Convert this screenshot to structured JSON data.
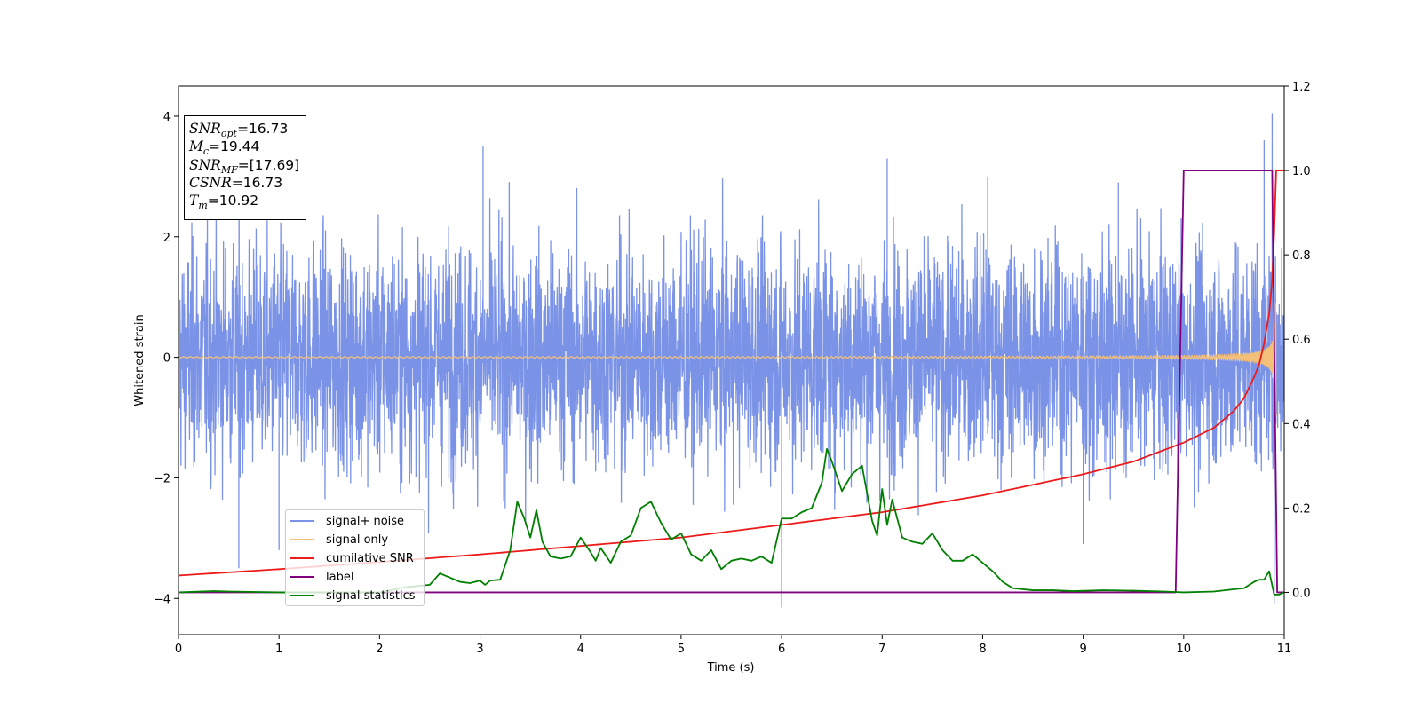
{
  "chart_data": {
    "type": "line",
    "xlabel": "Time (s)",
    "ylabel": "Whitened strain",
    "xlim": [
      0,
      11
    ],
    "ylim": [
      -4.6,
      4.5
    ],
    "y2lim": [
      -0.1,
      1.2
    ],
    "x_ticks": [
      "0",
      "1",
      "2",
      "3",
      "4",
      "5",
      "6",
      "7",
      "8",
      "9",
      "10",
      "11"
    ],
    "y_ticks": [
      "4",
      "2",
      "0",
      "−2",
      "−4"
    ],
    "y2_ticks": [
      "1.2",
      "1.0",
      "0.8",
      "0.6",
      "0.4",
      "0.2",
      "0.0"
    ],
    "legend_position": "lower-left",
    "annotation": [
      {
        "var": "SNR",
        "sub": "opt",
        "text": "=16.73"
      },
      {
        "var": "M",
        "sub": "c",
        "text": "=19.44"
      },
      {
        "var": "SNR",
        "sub": "MF",
        "text": "=[17.69]"
      },
      {
        "var": "CSNR",
        "sub": "",
        "text": "=16.73"
      },
      {
        "var": "T",
        "sub": "m",
        "text": "=10.92"
      }
    ],
    "series": [
      {
        "name": "signal+ noise",
        "color": "#7b93e6",
        "axis": "left",
        "style": "dense noise, amplitude roughly ±2.3, occasional spikes to ±3.5, peaks near t=10.9 up to 4.05",
        "highlight_points": [
          [
            0.6,
            -3.5
          ],
          [
            1.0,
            -3.2
          ],
          [
            3.03,
            3.5
          ],
          [
            6.0,
            -4.15
          ],
          [
            7.05,
            3.3
          ],
          [
            8.05,
            3.0
          ],
          [
            9.0,
            -3.1
          ],
          [
            9.35,
            2.9
          ],
          [
            10.8,
            3.6
          ],
          [
            10.88,
            4.05
          ],
          [
            10.9,
            -4.1
          ]
        ]
      },
      {
        "name": "signal only",
        "color": "#f3c07a",
        "axis": "left",
        "style": "chirp starting near zero amplitude, growing to about ±1.7 at t=10.92"
      },
      {
        "name": "cumilative SNR",
        "color": "#ee1a1a",
        "axis": "right",
        "x": [
          0,
          1,
          2,
          3,
          4,
          5,
          6,
          7,
          8,
          9,
          9.5,
          10,
          10.3,
          10.5,
          10.6,
          10.7,
          10.75,
          10.8,
          10.85,
          10.88,
          10.9,
          10.92,
          11
        ],
        "values": [
          0.04,
          0.055,
          0.072,
          0.09,
          0.11,
          0.13,
          0.16,
          0.19,
          0.23,
          0.28,
          0.31,
          0.355,
          0.39,
          0.43,
          0.46,
          0.51,
          0.54,
          0.59,
          0.66,
          0.74,
          0.85,
          1.0,
          1.0
        ]
      },
      {
        "name": "label",
        "color": "#800080",
        "axis": "right",
        "x": [
          0,
          9.92,
          10.0,
          10.88,
          10.93,
          11
        ],
        "values": [
          0,
          0,
          1,
          1,
          0,
          0
        ]
      },
      {
        "name": "signal statistics",
        "color": "#008000",
        "axis": "right",
        "x": [
          0,
          0.35,
          0.5,
          1.0,
          1.5,
          2.0,
          2.25,
          2.5,
          2.6,
          2.7,
          2.8,
          2.9,
          3.0,
          3.05,
          3.1,
          3.2,
          3.3,
          3.37,
          3.44,
          3.5,
          3.56,
          3.62,
          3.7,
          3.8,
          3.9,
          4.0,
          4.1,
          4.15,
          4.2,
          4.3,
          4.4,
          4.5,
          4.6,
          4.7,
          4.8,
          4.9,
          5.0,
          5.1,
          5.2,
          5.3,
          5.4,
          5.5,
          5.6,
          5.7,
          5.8,
          5.9,
          6.0,
          6.1,
          6.2,
          6.3,
          6.4,
          6.45,
          6.5,
          6.6,
          6.7,
          6.8,
          6.9,
          6.95,
          7.0,
          7.05,
          7.1,
          7.2,
          7.3,
          7.4,
          7.5,
          7.6,
          7.7,
          7.8,
          7.9,
          8.0,
          8.1,
          8.2,
          8.3,
          8.5,
          8.7,
          8.9,
          9.2,
          9.5,
          9.8,
          10.0,
          10.3,
          10.6,
          10.7,
          10.75,
          10.8,
          10.85,
          10.9,
          10.95,
          11.0
        ],
        "values": [
          0,
          0.003,
          0.002,
          0.0,
          0.0,
          0.0,
          0.012,
          0.018,
          0.045,
          0.035,
          0.025,
          0.022,
          0.028,
          0.018,
          0.028,
          0.03,
          0.1,
          0.215,
          0.175,
          0.13,
          0.195,
          0.12,
          0.085,
          0.08,
          0.085,
          0.13,
          0.095,
          0.075,
          0.105,
          0.07,
          0.12,
          0.135,
          0.2,
          0.215,
          0.165,
          0.125,
          0.14,
          0.09,
          0.075,
          0.1,
          0.055,
          0.075,
          0.08,
          0.075,
          0.085,
          0.07,
          0.175,
          0.175,
          0.19,
          0.2,
          0.26,
          0.34,
          0.31,
          0.24,
          0.28,
          0.3,
          0.17,
          0.135,
          0.245,
          0.16,
          0.22,
          0.13,
          0.12,
          0.115,
          0.14,
          0.1,
          0.075,
          0.075,
          0.09,
          0.07,
          0.05,
          0.025,
          0.01,
          0.005,
          0.005,
          0.003,
          0.005,
          0.004,
          0.002,
          0.0,
          0.002,
          0.01,
          0.025,
          0.03,
          0.03,
          0.05,
          -0.005,
          -0.005,
          0.0
        ]
      }
    ]
  }
}
